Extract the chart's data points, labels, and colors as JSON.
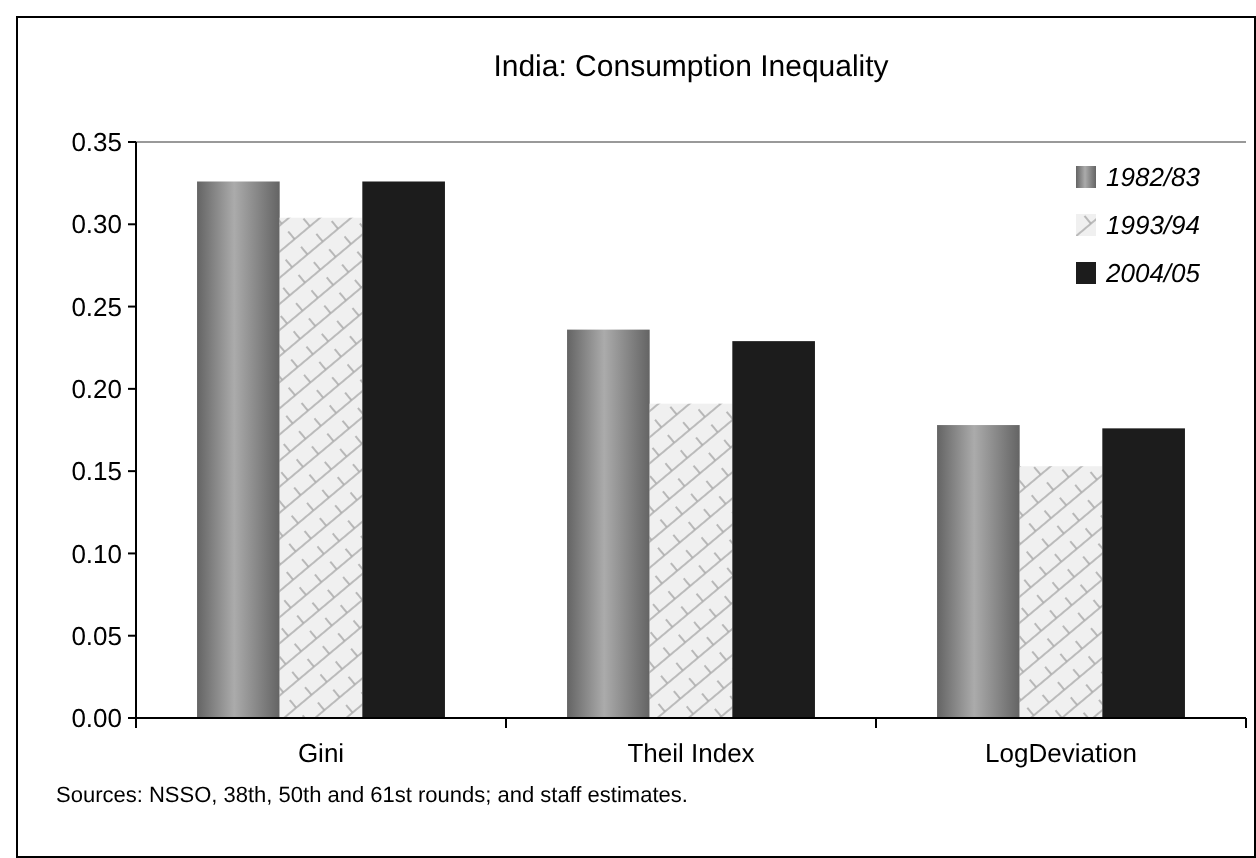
{
  "chart_data": {
    "type": "bar",
    "title": "India: Consumption Inequality",
    "categories": [
      "Gini",
      "Theil Index",
      "LogDeviation"
    ],
    "series": [
      {
        "name": "1982/83",
        "color": "#9a9a9a",
        "values": [
          0.326,
          0.236,
          0.178
        ]
      },
      {
        "name": "1993/94",
        "color": "#f0f0f0",
        "values": [
          0.304,
          0.191,
          0.153
        ]
      },
      {
        "name": "2004/05",
        "color": "#1c1c1c",
        "values": [
          0.326,
          0.229,
          0.176
        ]
      }
    ],
    "ylim": [
      0,
      0.35
    ],
    "yticks": [
      {
        "value": 0,
        "label": "0.00"
      },
      {
        "value": 0.05,
        "label": "0.05"
      },
      {
        "value": 0.1,
        "label": "0.10"
      },
      {
        "value": 0.15,
        "label": "0.15"
      },
      {
        "value": 0.2,
        "label": "0.20"
      },
      {
        "value": 0.25,
        "label": "0.25"
      },
      {
        "value": 0.3,
        "label": "0.30"
      },
      {
        "value": 0.35,
        "label": "0.35"
      }
    ],
    "grid": false,
    "legend": "top right",
    "annotations": [
      "Sources: NSSO, 38th, 50th and 61st rounds; and staff estimates."
    ]
  }
}
